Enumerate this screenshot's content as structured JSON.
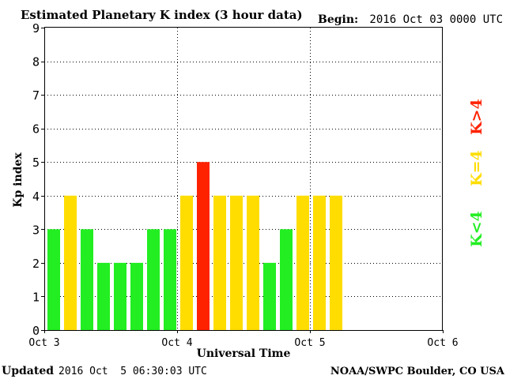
{
  "header": {
    "title": "Estimated Planetary K index (3 hour data)",
    "begin_label": "Begin:",
    "begin_value": "2016 Oct 03 0000 UTC"
  },
  "footer": {
    "updated_label": "Updated",
    "updated_value": "2016 Oct  5 06:30:03 UTC",
    "source": "NOAA/SWPC Boulder, CO USA"
  },
  "legend": {
    "items": [
      {
        "label": "K<4",
        "color": "#22ee22"
      },
      {
        "label": "K=4",
        "color": "#ffdd00"
      },
      {
        "label": "K>4",
        "color": "#ff2200"
      }
    ]
  },
  "chart_data": {
    "type": "bar",
    "title": "Estimated Planetary K index (3 hour data)",
    "xlabel": "Universal Time",
    "ylabel": "Kp index",
    "ylim": [
      0,
      9
    ],
    "yticks": [
      "0",
      "1",
      "2",
      "3",
      "4",
      "5",
      "6",
      "7",
      "8",
      "9"
    ],
    "x_tick_labels": [
      "Oct 3",
      "Oct 4",
      "Oct 5",
      "Oct 6"
    ],
    "interval_hours": 3,
    "values": [
      3,
      4,
      3,
      2,
      2,
      2,
      3,
      3,
      4,
      5,
      4,
      4,
      4,
      2,
      3,
      4,
      4,
      4
    ],
    "color_rule": {
      "below_4": "#22ee22",
      "equal_4": "#ffdd00",
      "above_4": "#ff2200"
    },
    "grid": true,
    "legend_position": "right"
  }
}
